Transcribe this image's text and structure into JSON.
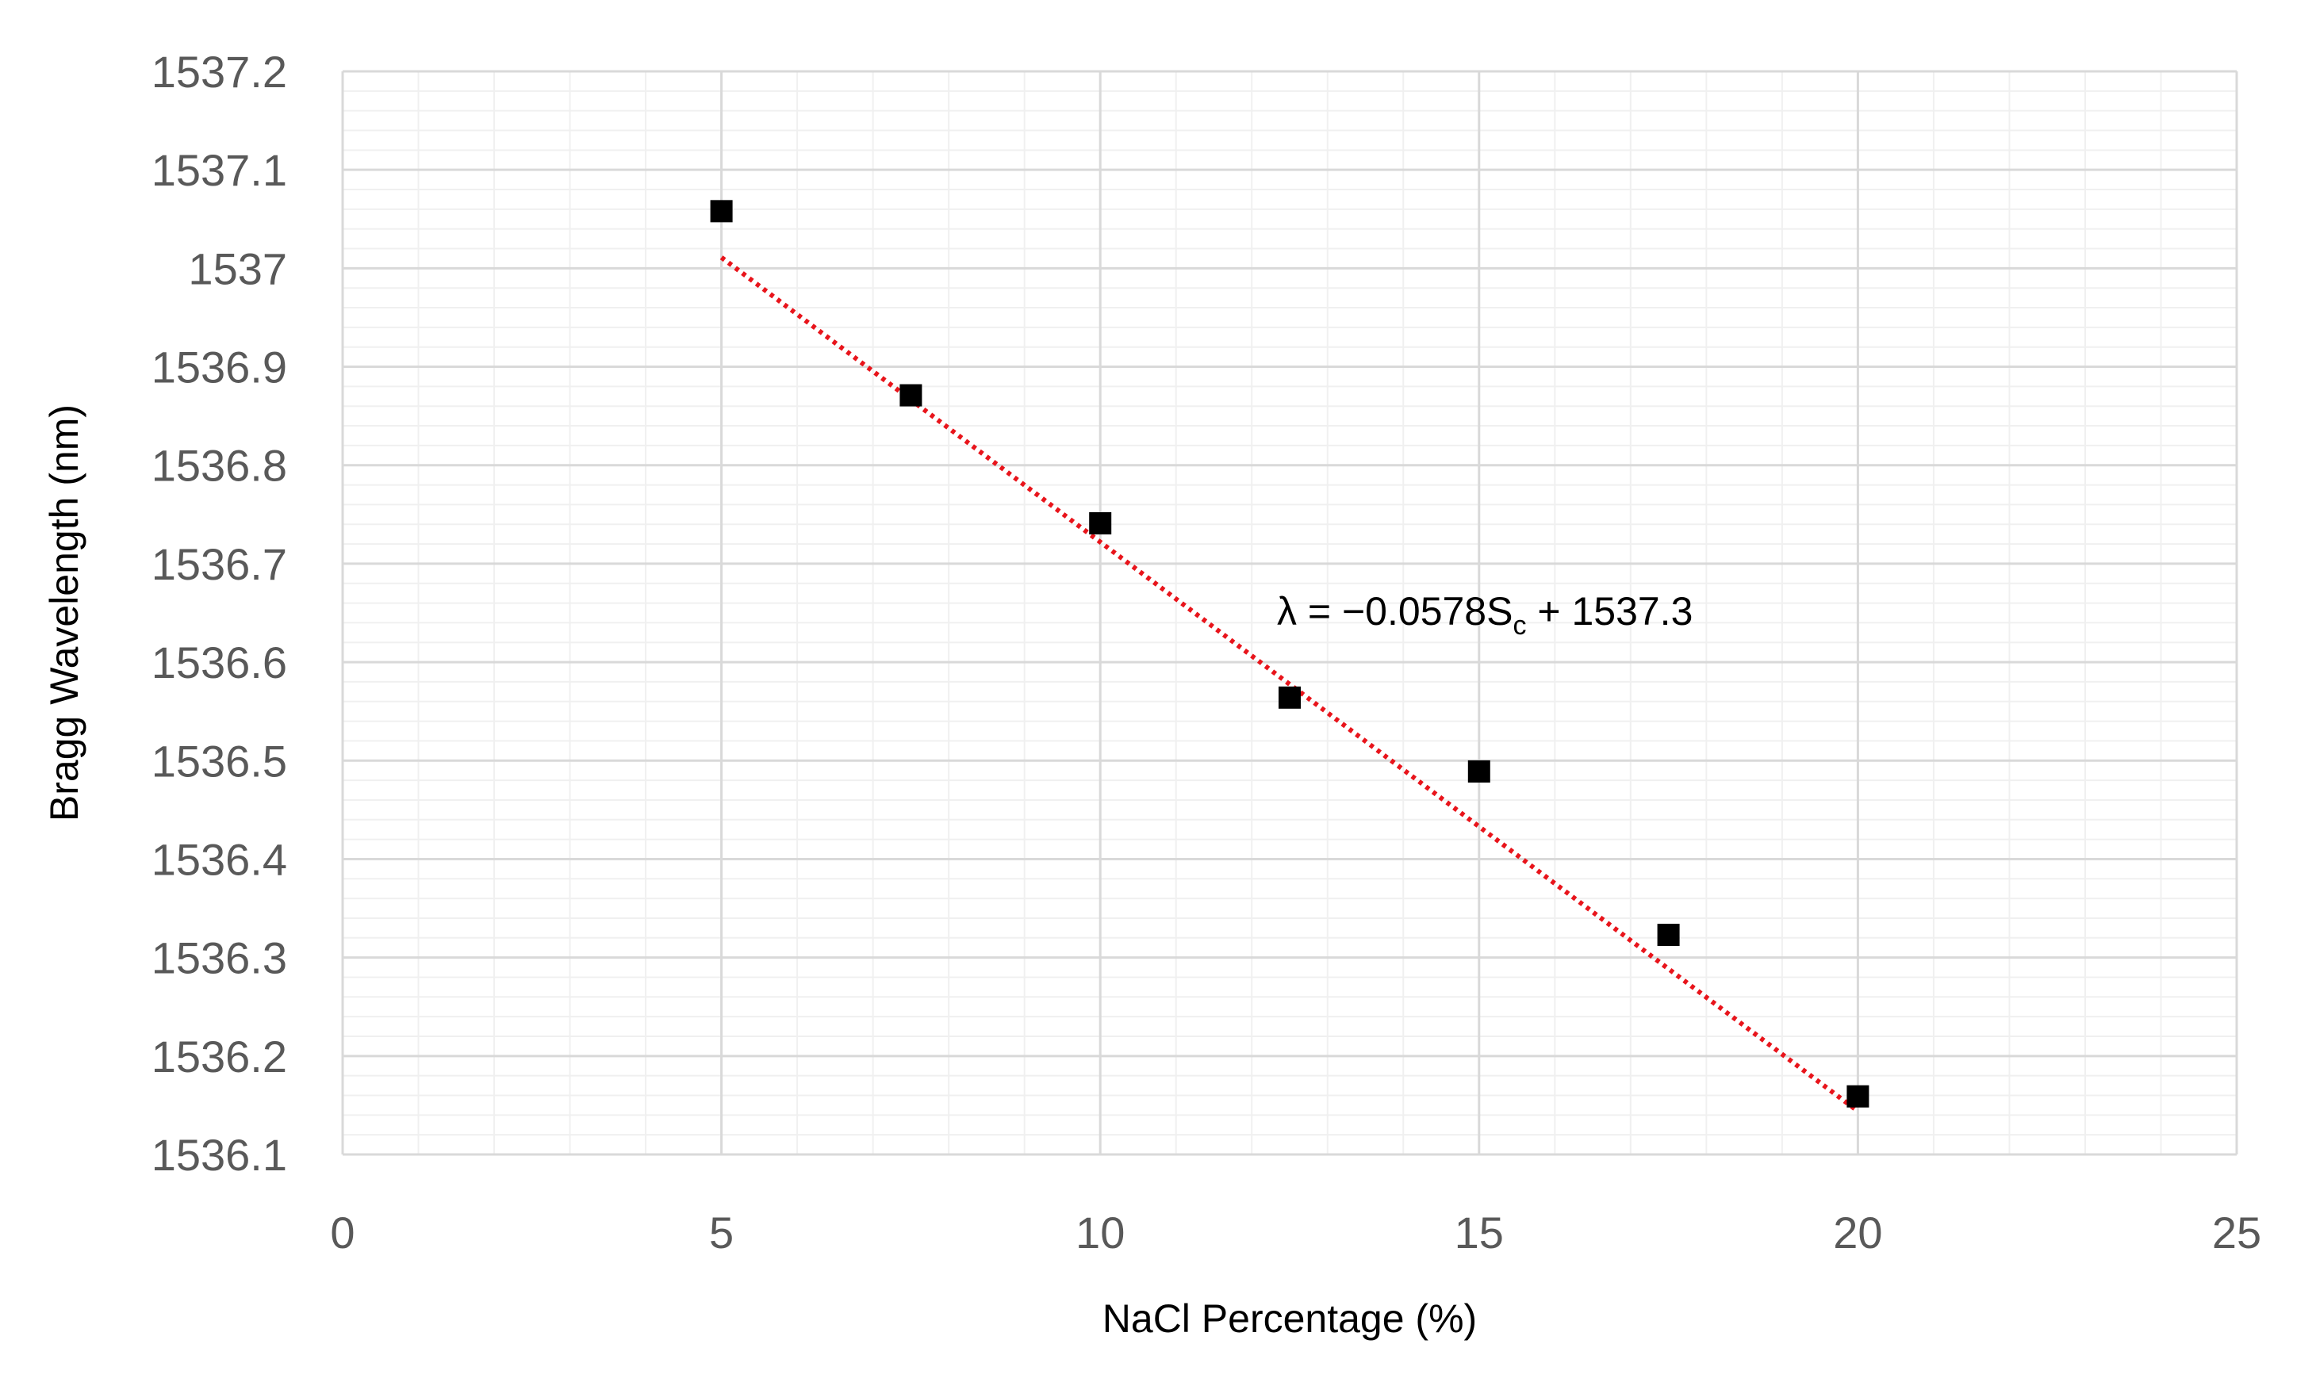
{
  "chart_data": {
    "type": "scatter",
    "title": "",
    "xlabel": "NaCl Percentage (%)",
    "ylabel": "Bragg Wavelength (nm)",
    "xlim": [
      0,
      25
    ],
    "ylim": [
      1536.1,
      1537.2
    ],
    "x_ticks": [
      "0",
      "5",
      "10",
      "15",
      "20",
      "25"
    ],
    "y_ticks": [
      "1536.1",
      "1536.2",
      "1536.3",
      "1536.4",
      "1536.5",
      "1536.6",
      "1536.7",
      "1536.8",
      "1536.9",
      "1537",
      "1537.1",
      "1537.2"
    ],
    "grid": true,
    "legend": "none",
    "series": [
      {
        "x": [
          5,
          7.5,
          10,
          12.5,
          15,
          17.5,
          20
        ],
        "y": [
          1537.058,
          1536.871,
          1536.741,
          1536.564,
          1536.489,
          1536.323,
          1536.159
        ],
        "marker": "square",
        "color": "#000000"
      }
    ],
    "trendline": {
      "type": "linear",
      "slope": -0.0578,
      "intercept": 1537.3,
      "x_range": [
        5,
        20
      ],
      "style": "dotted",
      "color": "#e8141b"
    },
    "annotation": {
      "prefix": "λ = −0.0578S",
      "subscript": "c",
      "suffix": " + 1537.3"
    }
  }
}
